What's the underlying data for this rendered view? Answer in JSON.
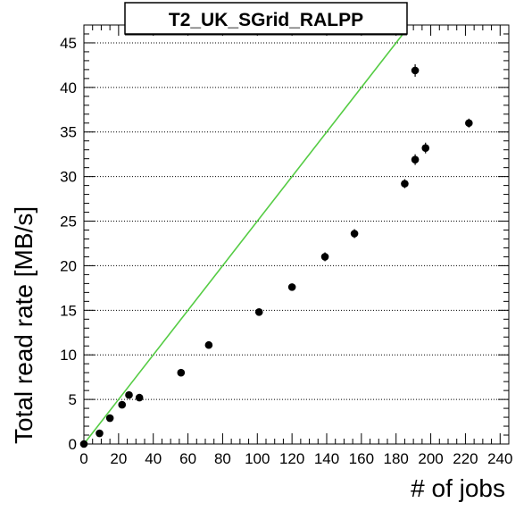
{
  "chart_data": {
    "type": "scatter",
    "title": "T2_UK_SGrid_RALPP",
    "xlabel": "# of jobs",
    "ylabel": "Total read rate [MB/s]",
    "xlim": [
      0,
      245
    ],
    "ylim": [
      0,
      47
    ],
    "x_ticks": [
      0,
      20,
      40,
      60,
      80,
      100,
      120,
      140,
      160,
      180,
      200,
      220,
      240
    ],
    "y_ticks": [
      0,
      5,
      10,
      15,
      20,
      25,
      30,
      35,
      40,
      45
    ],
    "grid": "horizontal dotted",
    "points": [
      {
        "x": 0,
        "y": 0,
        "err": 0.2
      },
      {
        "x": 9,
        "y": 1.2,
        "err": 0.3
      },
      {
        "x": 15,
        "y": 2.9,
        "err": 0.3
      },
      {
        "x": 22,
        "y": 4.4,
        "err": 0.3
      },
      {
        "x": 26,
        "y": 5.5,
        "err": 0.3
      },
      {
        "x": 32,
        "y": 5.2,
        "err": 0.3
      },
      {
        "x": 56,
        "y": 8.0,
        "err": 0.3
      },
      {
        "x": 72,
        "y": 11.1,
        "err": 0.3
      },
      {
        "x": 101,
        "y": 14.8,
        "err": 0.3
      },
      {
        "x": 120,
        "y": 17.6,
        "err": 0.4
      },
      {
        "x": 139,
        "y": 21.0,
        "err": 0.5
      },
      {
        "x": 156,
        "y": 23.6,
        "err": 0.5
      },
      {
        "x": 185,
        "y": 29.2,
        "err": 0.5
      },
      {
        "x": 191,
        "y": 31.9,
        "err": 0.6
      },
      {
        "x": 197,
        "y": 33.2,
        "err": 0.6
      },
      {
        "x": 191,
        "y": 41.9,
        "err": 0.7
      },
      {
        "x": 222,
        "y": 36.0,
        "err": 0.5
      }
    ],
    "reference_line": {
      "slope": 0.25,
      "intercept": 0,
      "x_end": 186,
      "color": "#55cc44"
    },
    "colors": {
      "markers": "#000000",
      "reference_line": "#55cc44",
      "grid": "#000000"
    }
  }
}
